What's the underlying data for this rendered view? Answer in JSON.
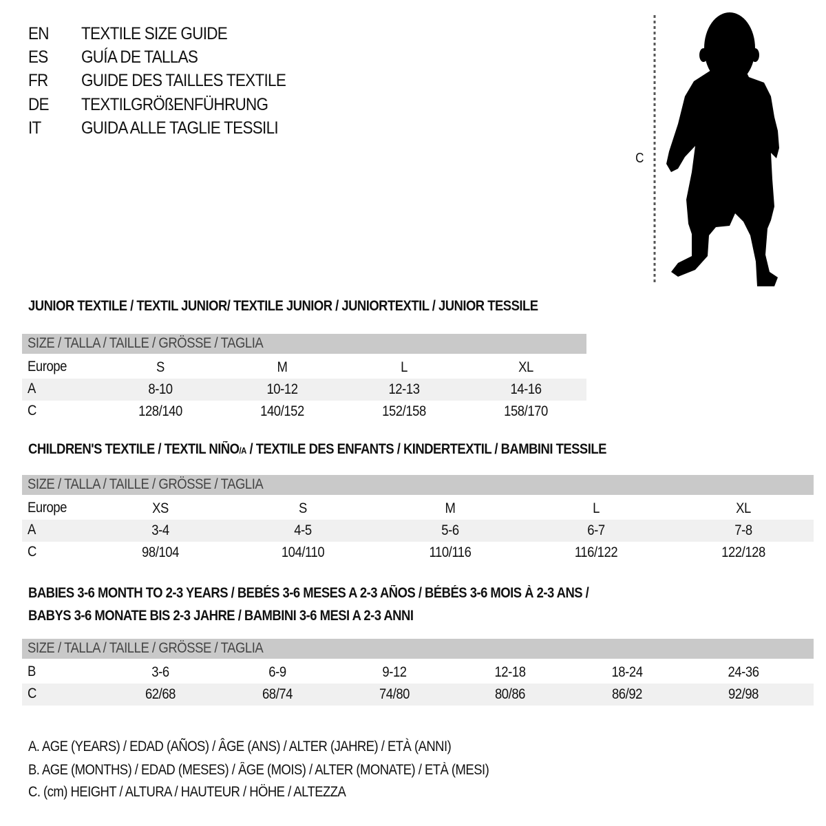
{
  "title_lines": [
    {
      "lang": "EN",
      "text": "TEXTILE SIZE GUIDE"
    },
    {
      "lang": "ES",
      "text": "GUÍA DE TALLAS"
    },
    {
      "lang": "FR",
      "text": "GUIDE DES TAILLES TEXTILE"
    },
    {
      "lang": "DE",
      "text": "TEXTILGRÖßENFÜHRUNG"
    },
    {
      "lang": "IT",
      "text": "GUIDA ALLE TAGLIE TESSILI"
    }
  ],
  "figure": {
    "measure_label": "C",
    "icon": "child-silhouette-icon"
  },
  "junior": {
    "title": "JUNIOR TEXTILE / TEXTIL JUNIOR/ TEXTILE JUNIOR / JUNIORTEXTIL / JUNIOR TESSILE",
    "header": "SIZE / TALLA / TAILLE / GRÖSSE / TAGLIA",
    "rows": [
      {
        "label": "Europe",
        "values": [
          "S",
          "M",
          "L",
          "XL"
        ]
      },
      {
        "label": "A",
        "values": [
          "8-10",
          "10-12",
          "12-13",
          "14-16"
        ]
      },
      {
        "label": "C",
        "values": [
          "128/140",
          "140/152",
          "152/158",
          "158/170"
        ]
      }
    ]
  },
  "children": {
    "title_pre": "CHILDREN'S TEXTILE / TEXTIL NIÑO",
    "title_sub": "/A",
    "title_post": " / TEXTILE DES ENFANTS / KINDERTEXTIL / BAMBINI TESSILE",
    "header": "SIZE / TALLA / TAILLE / GRÖSSE / TAGLIA",
    "rows": [
      {
        "label": "Europe",
        "values": [
          "XS",
          "S",
          "M",
          "L",
          "XL"
        ]
      },
      {
        "label": "A",
        "values": [
          "3-4",
          "4-5",
          "5-6",
          "6-7",
          "7-8"
        ]
      },
      {
        "label": "C",
        "values": [
          "98/104",
          "104/110",
          "110/116",
          "116/122",
          "122/128"
        ]
      }
    ]
  },
  "babies": {
    "title_line1": "BABIES 3-6 MONTH TO 2-3 YEARS / BEBÉS 3-6 MESES A 2-3 AÑOS / BÉBÉS 3-6 MOIS À 2-3 ANS /",
    "title_line2": "BABYS 3-6 MONATE BIS 2-3 JAHRE / BAMBINI 3-6 MESI A 2-3 ANNI",
    "header": "SIZE / TALLA / TAILLE / GRÖSSE / TAGLIA",
    "rows": [
      {
        "label": "B",
        "values": [
          "3-6",
          "6-9",
          "9-12",
          "12-18",
          "18-24",
          "24-36"
        ]
      },
      {
        "label": "C",
        "values": [
          "62/68",
          "68/74",
          "74/80",
          "80/86",
          "86/92",
          "92/98"
        ]
      }
    ]
  },
  "legend": [
    "A. AGE (YEARS) / EDAD (AÑOS) / ÂGE (ANS) / ALTER (JAHRE) / ETÀ (ANNI)",
    "B. AGE (MONTHS) / EDAD (MESES) / ÂGE (MOIS) / ALTER (MONATE) / ETÀ (MESI)",
    "C. (cm) HEIGHT / ALTURA / HAUTEUR / HÖHE / ALTEZZA"
  ],
  "colors": {
    "header_row": "#c9c9c9",
    "alt_row": "#f0f0f0",
    "text": "#111111"
  }
}
